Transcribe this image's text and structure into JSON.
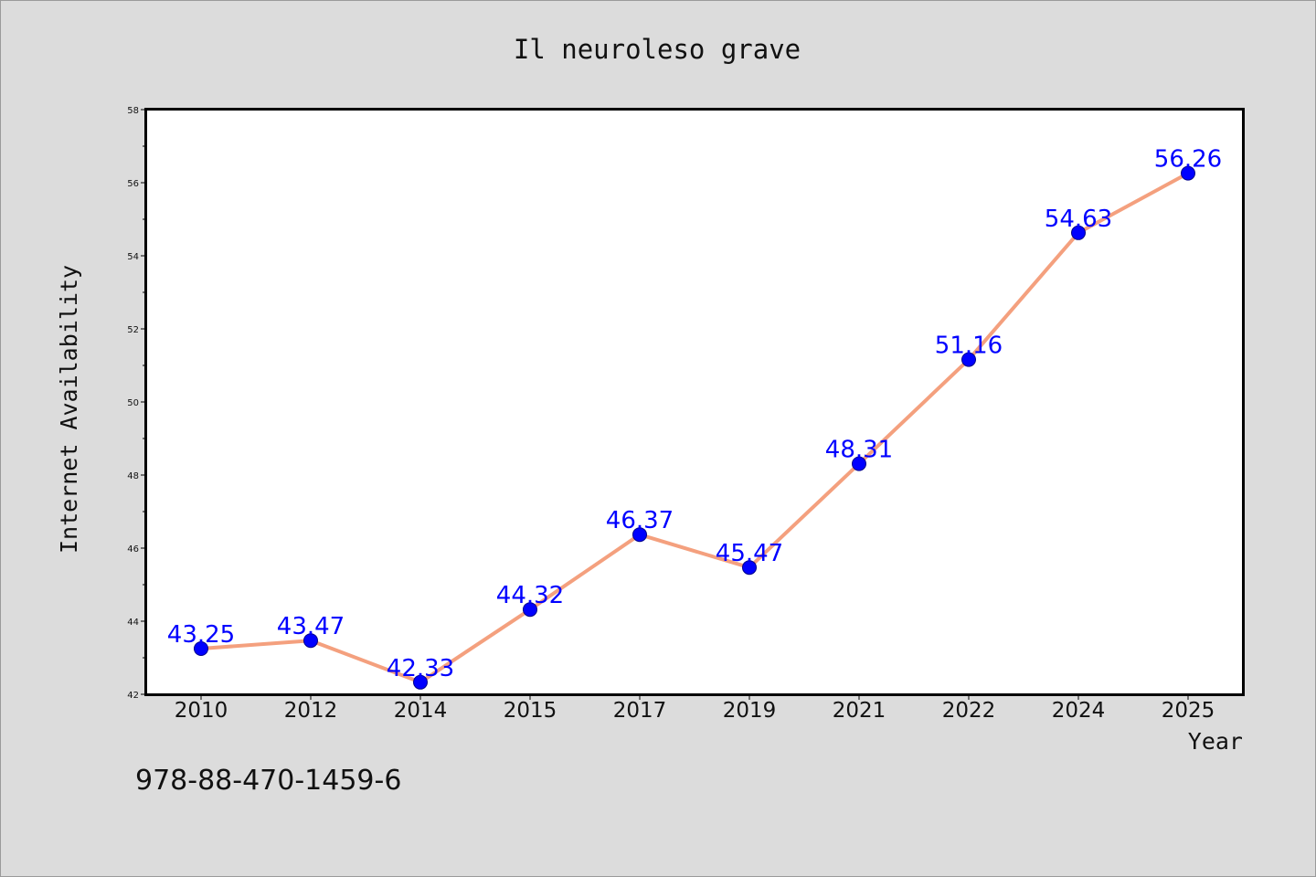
{
  "chart_data": {
    "type": "line",
    "title": "Il neuroleso grave",
    "xlabel": "Year",
    "ylabel": "Internet Availability",
    "categories": [
      "2010",
      "2012",
      "2014",
      "2015",
      "2017",
      "2019",
      "2021",
      "2022",
      "2024",
      "2025"
    ],
    "series": [
      {
        "values": [
          43.25,
          43.47,
          42.33,
          44.32,
          46.37,
          45.47,
          48.31,
          51.16,
          54.63,
          56.26
        ],
        "labels": [
          "43.25",
          "43.47",
          "42.33",
          "44.32",
          "46.37",
          "45.47",
          "48.31",
          "51.16",
          "54.63",
          "56.26"
        ],
        "line_color": "#f4a07e",
        "marker_color": "#0000ff"
      }
    ],
    "ylim": [
      42,
      58
    ],
    "y_ticks": [
      "42",
      "44",
      "46",
      "48",
      "50",
      "52",
      "54",
      "56",
      "58"
    ],
    "grid": false,
    "legend": "none"
  },
  "footnote": "978-88-470-1459-6"
}
